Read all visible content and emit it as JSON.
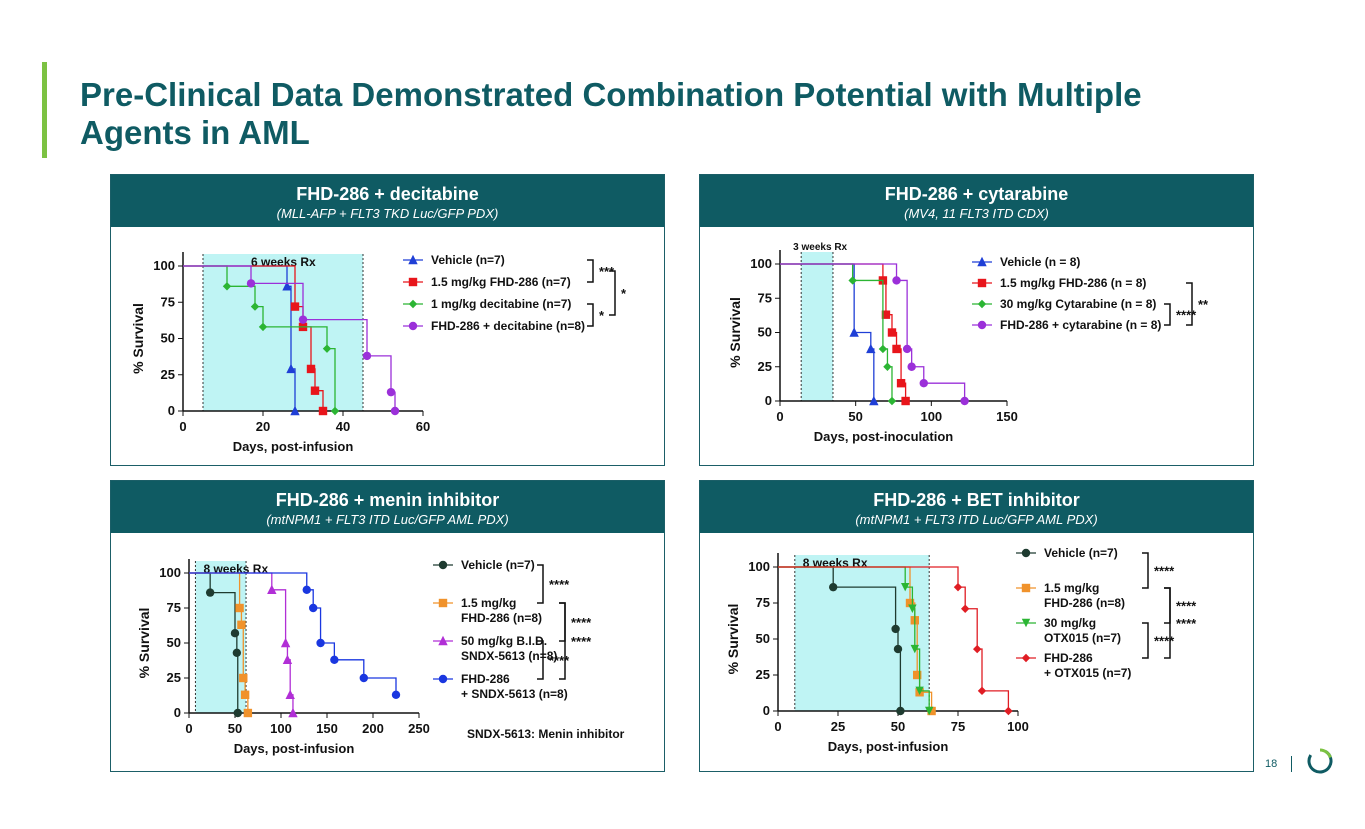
{
  "slide": {
    "title": "Pre-Clinical Data Demonstrated Combination Potential with Multiple Agents in AML",
    "page_number": "18",
    "colors": {
      "title": "#0f5b63",
      "accent": "#7cc242",
      "header_bg": "#0f5b63",
      "rx_band": "#bff4f4"
    }
  },
  "chart_data": [
    {
      "type": "line",
      "title": "FHD-286 + decitabine",
      "subtitle": "(MLL-AFP + FLT3 TKD Luc/GFP PDX)",
      "xlabel": "Days, post-infusion",
      "ylabel": "% Survival",
      "xlim": [
        0,
        60
      ],
      "ylim": [
        0,
        100
      ],
      "xticks": [
        0,
        20,
        40,
        60
      ],
      "yticks": [
        0,
        25,
        50,
        75,
        100
      ],
      "rx_label": "6 weeks Rx",
      "rx_range": [
        5,
        45
      ],
      "series": [
        {
          "name": "Vehicle (n=7)",
          "color": "#1f3fd6",
          "marker": "triangle",
          "points": [
            [
              0,
              100
            ],
            [
              26,
              86
            ],
            [
              27,
              29
            ],
            [
              28,
              0
            ]
          ]
        },
        {
          "name": "1.5 mg/kg FHD-286 (n=7)",
          "color": "#e8151b",
          "marker": "square",
          "points": [
            [
              0,
              100
            ],
            [
              28,
              72
            ],
            [
              30,
              58
            ],
            [
              32,
              29
            ],
            [
              33,
              14
            ],
            [
              35,
              0
            ]
          ]
        },
        {
          "name": "1 mg/kg decitabine (n=7)",
          "color": "#2bb533",
          "marker": "diamond",
          "points": [
            [
              0,
              100
            ],
            [
              11,
              86
            ],
            [
              18,
              72
            ],
            [
              20,
              58
            ],
            [
              36,
              43
            ],
            [
              38,
              0
            ]
          ]
        },
        {
          "name": "FHD-286 + decitabine (n=8)",
          "color": "#9b30d9",
          "marker": "circle",
          "points": [
            [
              0,
              100
            ],
            [
              17,
              88
            ],
            [
              30,
              63
            ],
            [
              46,
              38
            ],
            [
              52,
              13
            ],
            [
              53,
              0
            ]
          ]
        }
      ],
      "significance": [
        {
          "label": "***",
          "rows": [
            0,
            1
          ]
        },
        {
          "label": "*",
          "rows": [
            2,
            3
          ]
        },
        {
          "label": "*",
          "rows": [
            0.5,
            2.5
          ]
        }
      ]
    },
    {
      "type": "line",
      "title": "FHD-286 + cytarabine",
      "subtitle": "(MV4, 11 FLT3 ITD CDX)",
      "xlabel": "Days, post-inoculation",
      "ylabel": "% Survival",
      "xlim": [
        0,
        150
      ],
      "ylim": [
        0,
        100
      ],
      "xticks": [
        0,
        50,
        100,
        150
      ],
      "yticks": [
        0,
        25,
        50,
        75,
        100
      ],
      "rx_label": "3 weeks Rx",
      "rx_range": [
        14,
        35
      ],
      "series": [
        {
          "name": "Vehicle (n = 8)",
          "color": "#1f3fd6",
          "marker": "triangle",
          "points": [
            [
              0,
              100
            ],
            [
              49,
              50
            ],
            [
              60,
              38
            ],
            [
              62,
              0
            ]
          ]
        },
        {
          "name": "1.5 mg/kg FHD-286 (n = 8)",
          "color": "#e8151b",
          "marker": "square",
          "points": [
            [
              0,
              100
            ],
            [
              68,
              88
            ],
            [
              70,
              63
            ],
            [
              74,
              50
            ],
            [
              77,
              38
            ],
            [
              80,
              13
            ],
            [
              83,
              0
            ]
          ]
        },
        {
          "name": "30 mg/kg Cytarabine (n = 8)",
          "color": "#2bb533",
          "marker": "diamond",
          "points": [
            [
              0,
              100
            ],
            [
              48,
              88
            ],
            [
              68,
              38
            ],
            [
              71,
              25
            ],
            [
              74,
              0
            ]
          ]
        },
        {
          "name": "FHD-286 + cytarabine (n = 8)",
          "color": "#9b30d9",
          "marker": "circle",
          "points": [
            [
              0,
              100
            ],
            [
              77,
              88
            ],
            [
              84,
              38
            ],
            [
              87,
              25
            ],
            [
              95,
              13
            ],
            [
              122,
              0
            ]
          ]
        }
      ],
      "significance": [
        {
          "label": "****",
          "rows": [
            2,
            3
          ]
        },
        {
          "label": "**",
          "rows": [
            1,
            3
          ]
        }
      ]
    },
    {
      "type": "line",
      "title": "FHD-286 + menin inhibitor",
      "subtitle": "(mtNPM1 + FLT3 ITD Luc/GFP AML PDX)",
      "xlabel": "Days, post-infusion",
      "ylabel": "% Survival",
      "xlim": [
        0,
        250
      ],
      "ylim": [
        0,
        100
      ],
      "xticks": [
        0,
        50,
        100,
        150,
        200,
        250
      ],
      "yticks": [
        0,
        25,
        50,
        75,
        100
      ],
      "rx_label": "8 weeks  Rx",
      "rx_range": [
        7,
        62
      ],
      "note": "SNDX-5613: Menin inhibitor",
      "series": [
        {
          "name": "Vehicle (n=7)",
          "color": "#1e3b30",
          "marker": "circle",
          "points": [
            [
              0,
              100
            ],
            [
              23,
              86
            ],
            [
              50,
              57
            ],
            [
              52,
              43
            ],
            [
              53,
              0
            ]
          ]
        },
        {
          "name": "1.5 mg/kg FHD-286 (n=8)",
          "color": "#f0922b",
          "marker": "square",
          "points": [
            [
              0,
              100
            ],
            [
              55,
              75
            ],
            [
              57,
              63
            ],
            [
              59,
              25
            ],
            [
              61,
              13
            ],
            [
              64,
              0
            ]
          ]
        },
        {
          "name": "50 mg/kg B.I.D. SNDX-5613 (n=8)",
          "color": "#b12fd6",
          "marker": "triangle",
          "points": [
            [
              0,
              100
            ],
            [
              90,
              88
            ],
            [
              105,
              50
            ],
            [
              107,
              38
            ],
            [
              110,
              13
            ],
            [
              113,
              0
            ]
          ]
        },
        {
          "name": "FHD-286 + SNDX-5613 (n=8)",
          "color": "#1a37e0",
          "marker": "circle",
          "points": [
            [
              0,
              100
            ],
            [
              128,
              88
            ],
            [
              135,
              75
            ],
            [
              143,
              50
            ],
            [
              158,
              38
            ],
            [
              190,
              25
            ],
            [
              225,
              13
            ]
          ]
        }
      ],
      "significance": [
        {
          "label": "****",
          "rows": [
            0,
            1
          ]
        },
        {
          "label": "****",
          "rows": [
            1,
            2
          ]
        },
        {
          "label": "****",
          "rows": [
            2,
            3
          ]
        },
        {
          "label": "****",
          "rows": [
            1,
            3
          ]
        }
      ]
    },
    {
      "type": "line",
      "title": "FHD-286 + BET inhibitor",
      "subtitle": "(mtNPM1 + FLT3 ITD Luc/GFP AML PDX)",
      "xlabel": "Days, post-infusion",
      "ylabel": "% Survival",
      "xlim": [
        0,
        100
      ],
      "ylim": [
        0,
        100
      ],
      "xticks": [
        0,
        25,
        50,
        75,
        100
      ],
      "yticks": [
        0,
        25,
        50,
        75,
        100
      ],
      "rx_label": "8 weeks  Rx",
      "rx_range": [
        7,
        63
      ],
      "series": [
        {
          "name": "Vehicle (n=7)",
          "color": "#1e3b30",
          "marker": "circle",
          "points": [
            [
              0,
              100
            ],
            [
              23,
              86
            ],
            [
              49,
              57
            ],
            [
              50,
              43
            ],
            [
              51,
              0
            ]
          ]
        },
        {
          "name": "1.5 mg/kg FHD-286 (n=8)",
          "color": "#f0922b",
          "marker": "square",
          "points": [
            [
              0,
              100
            ],
            [
              55,
              75
            ],
            [
              57,
              63
            ],
            [
              58,
              25
            ],
            [
              59,
              13
            ],
            [
              64,
              0
            ]
          ]
        },
        {
          "name": "30 mg/kg OTX015 (n=7)",
          "color": "#2bb533",
          "marker": "triangle-down",
          "points": [
            [
              0,
              100
            ],
            [
              53,
              86
            ],
            [
              56,
              71
            ],
            [
              57,
              43
            ],
            [
              59,
              14
            ],
            [
              63,
              0
            ]
          ]
        },
        {
          "name": "FHD-286 + OTX015 (n=7)",
          "color": "#e01d24",
          "marker": "diamond",
          "points": [
            [
              0,
              100
            ],
            [
              75,
              86
            ],
            [
              78,
              71
            ],
            [
              83,
              43
            ],
            [
              85,
              14
            ],
            [
              96,
              0
            ]
          ]
        }
      ],
      "significance": [
        {
          "label": "****",
          "rows": [
            0,
            1
          ]
        },
        {
          "label": "****",
          "rows": [
            1,
            2
          ]
        },
        {
          "label": "****",
          "rows": [
            2,
            3
          ]
        },
        {
          "label": "****",
          "rows": [
            1,
            3
          ]
        }
      ]
    }
  ]
}
